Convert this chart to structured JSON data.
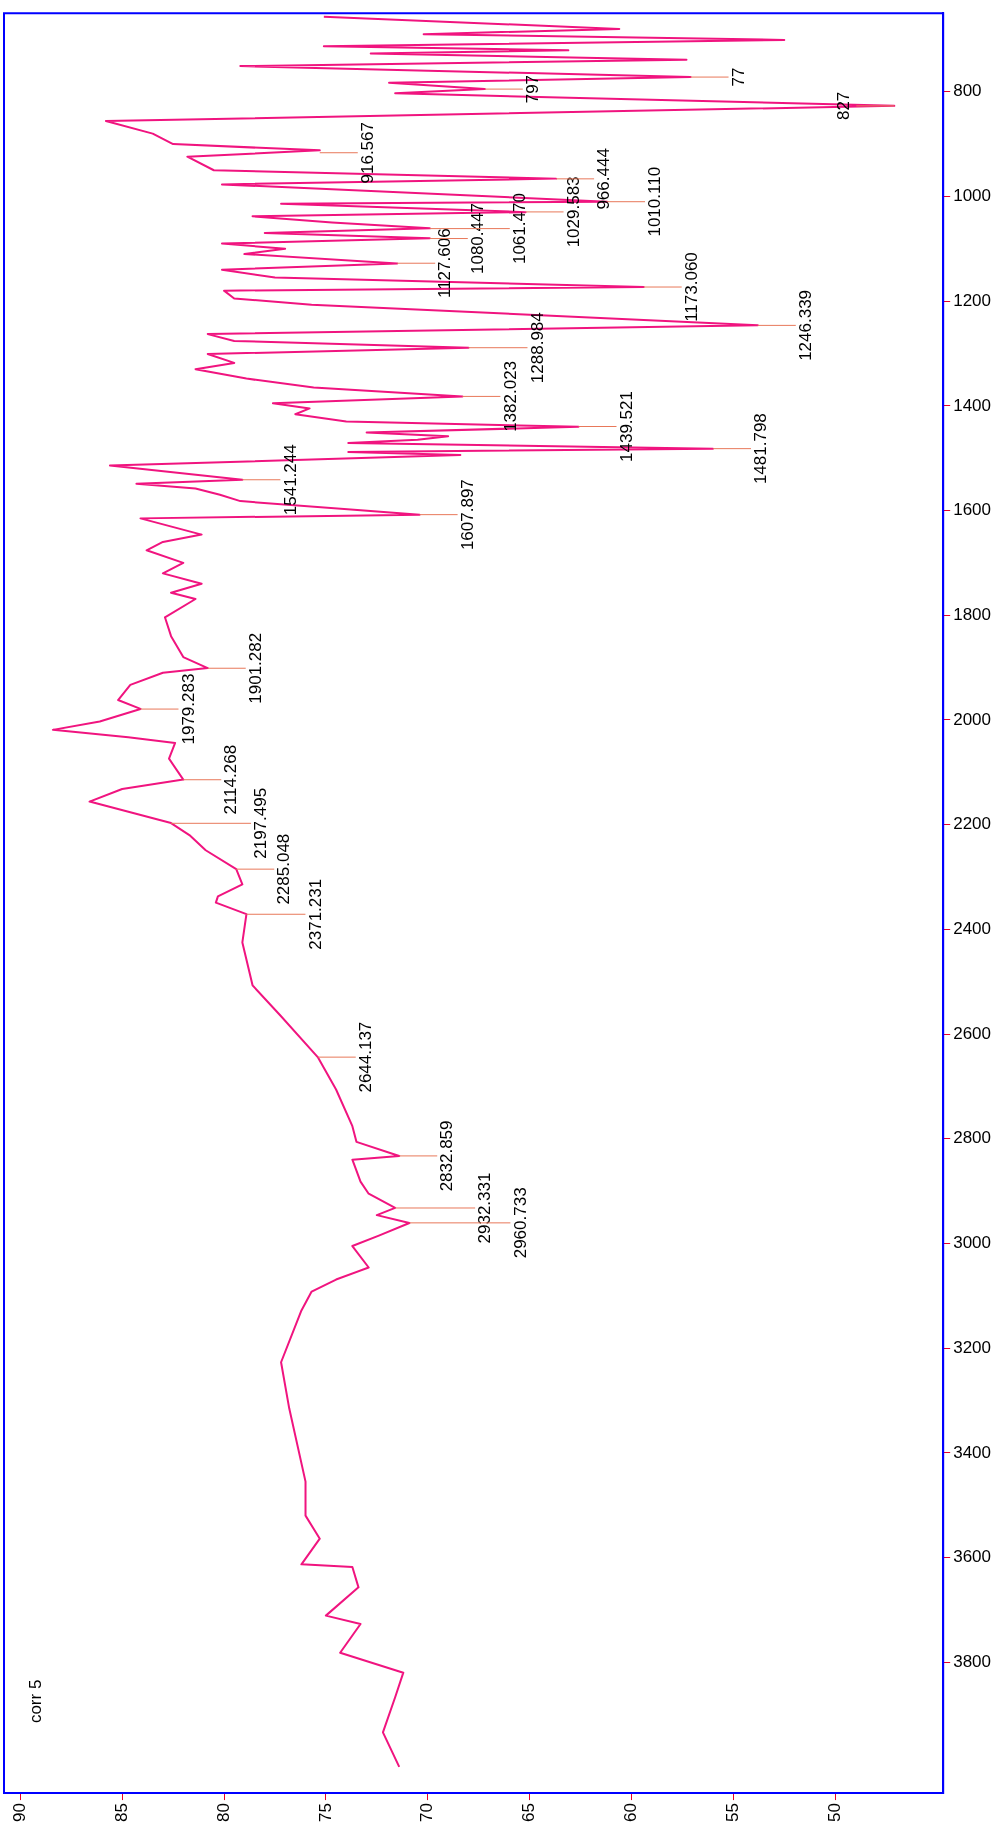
{
  "chart_data": {
    "type": "line",
    "color": "#f0147f",
    "xlim": [
      90.8,
      44.7
    ],
    "xticks": [
      90,
      85,
      80,
      75,
      70,
      65,
      60,
      55,
      50
    ],
    "ylim": [
      4050,
      650
    ],
    "yticks": [
      800,
      1000,
      1200,
      1400,
      1600,
      1800,
      2000,
      2200,
      2400,
      2600,
      2800,
      3000,
      3200,
      3400,
      3600,
      3800
    ],
    "x": [
      75.1,
      60.6,
      70.2,
      52.5,
      75.1,
      63.1,
      72.8,
      57.3,
      79.2,
      57.1,
      71.9,
      67.2,
      71.6,
      47.1,
      85.8,
      83.5,
      82.5,
      75.3,
      81.8,
      80.5,
      63.7,
      80.1,
      61.2,
      77.2,
      65.2,
      78.6,
      74.7,
      69.9,
      78.0,
      69.9,
      80.1,
      77.0,
      79.0,
      71.5,
      80.1,
      77.5,
      59.4,
      80.0,
      79.5,
      75.7,
      53.8,
      80.8,
      79.5,
      68.0,
      80.8,
      79.5,
      81.4,
      78.9,
      75.6,
      68.3,
      77.6,
      75.8,
      76.5,
      74.0,
      62.6,
      73.0,
      69.0,
      70.5,
      73.9,
      56.0,
      73.9,
      68.4,
      85.6,
      79.1,
      84.3,
      81.4,
      80.2,
      79.2,
      70.4,
      84.1,
      81.1,
      83.0,
      83.8,
      82.0,
      83.0,
      81.1,
      82.6,
      81.4,
      82.9,
      82.6,
      82.0,
      80.8,
      83.0,
      84.6,
      85.2,
      84.1,
      86.1,
      88.4,
      84.7,
      82.4,
      82.7,
      82.0,
      85.0,
      86.6,
      82.6,
      81.7,
      80.9,
      79.4,
      79.1,
      80.3,
      80.4,
      78.9,
      79.1,
      78.6,
      77.2,
      75.4,
      74.5,
      73.7,
      73.5,
      71.4,
      73.7,
      73.3,
      72.9,
      71.6,
      72.5,
      70.9,
      72.4,
      73.7,
      72.9,
      74.5,
      75.7,
      76.2,
      77.2,
      76.8,
      76.0,
      76.0,
      75.3,
      76.2,
      73.7,
      73.4,
      75.0,
      73.3,
      74.3,
      71.2,
      71.6,
      72.2,
      71.4
    ],
    "values": [
      657,
      680,
      690,
      701,
      713,
      721,
      727,
      739,
      751,
      772,
      783,
      795,
      803,
      827,
      856,
      880,
      900,
      912,
      924,
      950,
      966,
      977,
      1010,
      1014,
      1030,
      1038,
      1050,
      1061,
      1070,
      1080,
      1090,
      1100,
      1110,
      1128,
      1140,
      1155,
      1173,
      1180,
      1195,
      1207,
      1246,
      1263,
      1276,
      1289,
      1301,
      1318,
      1330,
      1348,
      1365,
      1382,
      1395,
      1405,
      1416,
      1430,
      1440,
      1451,
      1458,
      1465,
      1471,
      1482,
      1488,
      1494,
      1514,
      1541,
      1549,
      1558,
      1570,
      1582,
      1608,
      1615,
      1646,
      1660,
      1676,
      1700,
      1720,
      1740,
      1757,
      1769,
      1804,
      1840,
      1880,
      1901,
      1910,
      1933,
      1962,
      1979,
      2003,
      2019,
      2033,
      2044,
      2074,
      2114,
      2132,
      2156,
      2197,
      2220,
      2249,
      2285,
      2314,
      2337,
      2349,
      2371,
      2425,
      2507,
      2566,
      2644,
      2706,
      2776,
      2806,
      2833,
      2840,
      2882,
      2905,
      2932,
      2946,
      2961,
      2985,
      3005,
      3046,
      3069,
      3092,
      3128,
      3227,
      3315,
      3455,
      3520,
      3564,
      3613,
      3618,
      3657,
      3711,
      3727,
      3782,
      3820,
      3867,
      3934,
      4000
    ],
    "annotations": [
      "corr 5",
      {
        "text": "1979.283",
        "y": 1979.283,
        "x": 84.1
      },
      {
        "text": "1901.282",
        "y": 1901.282,
        "x": 80.8
      },
      {
        "text": "2114.268",
        "y": 2114.268,
        "x": 82.0
      },
      {
        "text": "2197.495",
        "y": 2197.495,
        "x": 82.6
      },
      {
        "text": "2285.048",
        "y": 2285.048,
        "x": 79.4
      },
      {
        "text": "2371.231",
        "y": 2371.231,
        "x": 78.9
      },
      {
        "text": "2644.137",
        "y": 2644.137,
        "x": 75.4
      },
      {
        "text": "2832.859",
        "y": 2832.859,
        "x": 71.4
      },
      {
        "text": "2932.331",
        "y": 2932.331,
        "x": 71.6
      },
      {
        "text": "2960.733",
        "y": 2960.733,
        "x": 70.9
      },
      {
        "text": "1607.897",
        "y": 1607.897,
        "x": 70.4
      },
      {
        "text": "1541.244",
        "y": 1541.244,
        "x": 79.1
      },
      {
        "text": "1481.798",
        "y": 1481.798,
        "x": 56.0
      },
      {
        "text": "1439.521",
        "y": 1439.521,
        "x": 62.6
      },
      {
        "text": "1382.023",
        "y": 1382.023,
        "x": 68.3
      },
      {
        "text": "1288.984",
        "y": 1288.984,
        "x": 68.0
      },
      {
        "text": "1246.339",
        "y": 1246.339,
        "x": 53.8
      },
      {
        "text": "1173.060",
        "y": 1173.06,
        "x": 59.4
      },
      {
        "text": "1127.606",
        "y": 1127.606,
        "x": 71.5
      },
      {
        "text": "1080.447",
        "y": 1080.447,
        "x": 69.9
      },
      {
        "text": "1061.470",
        "y": 1061.47,
        "x": 69.9
      },
      {
        "text": "1029.583",
        "y": 1029.583,
        "x": 65.2
      },
      {
        "text": "1010.110",
        "y": 1010.11,
        "x": 61.2
      },
      {
        "text": "966.444",
        "y": 966.444,
        "x": 63.7
      },
      {
        "text": "916.567",
        "y": 916.567,
        "x": 75.3
      },
      {
        "text": "827",
        "y": 827,
        "x": 47.1
      },
      {
        "text": "797",
        "y": 795,
        "x": 67.2
      },
      {
        "text": "77",
        "y": 772,
        "x": 57.1
      }
    ]
  }
}
